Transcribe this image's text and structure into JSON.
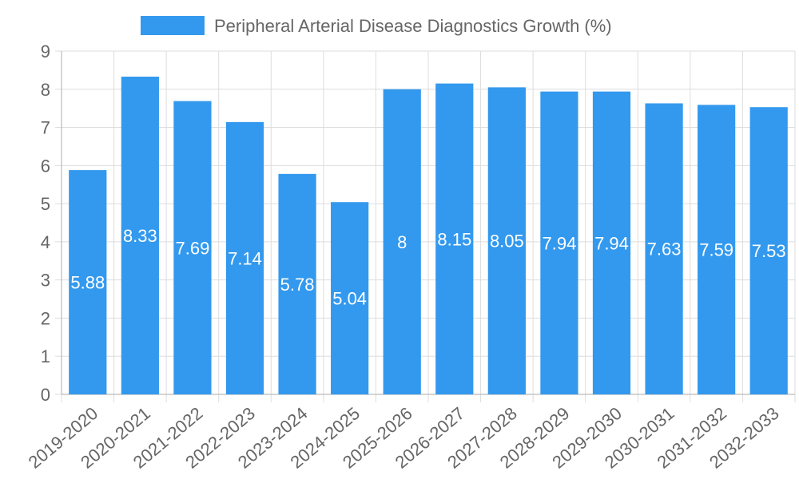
{
  "colors": {
    "bar": "#3399ee",
    "grid": "#dddddd",
    "axis_text": "#666666",
    "value_label": "#ffffff"
  },
  "chart_data": {
    "type": "bar",
    "title": "",
    "legend": {
      "label": "Peripheral Arterial Disease Diagnostics Growth (%)",
      "position": "top-center"
    },
    "categories": [
      "2019-2020",
      "2020-2021",
      "2021-2022",
      "2022-2023",
      "2023-2024",
      "2024-2025",
      "2025-2026",
      "2026-2027",
      "2027-2028",
      "2028-2029",
      "2029-2030",
      "2030-2031",
      "2031-2032",
      "2032-2033"
    ],
    "series": [
      {
        "name": "Peripheral Arterial Disease Diagnostics Growth (%)",
        "values": [
          5.88,
          8.33,
          7.69,
          7.14,
          5.78,
          5.04,
          8,
          8.15,
          8.05,
          7.94,
          7.94,
          7.63,
          7.59,
          7.53
        ],
        "value_labels": [
          "5.88",
          "8.33",
          "7.69",
          "7.14",
          "5.78",
          "5.04",
          "8",
          "8.15",
          "8.05",
          "7.94",
          "7.94",
          "7.63",
          "7.59",
          "7.53"
        ]
      }
    ],
    "xlabel": "",
    "ylabel": "",
    "ylim": [
      0,
      9
    ],
    "yticks": [
      "0",
      "1",
      "2",
      "3",
      "4",
      "5",
      "6",
      "7",
      "8",
      "9"
    ],
    "grid": true
  }
}
